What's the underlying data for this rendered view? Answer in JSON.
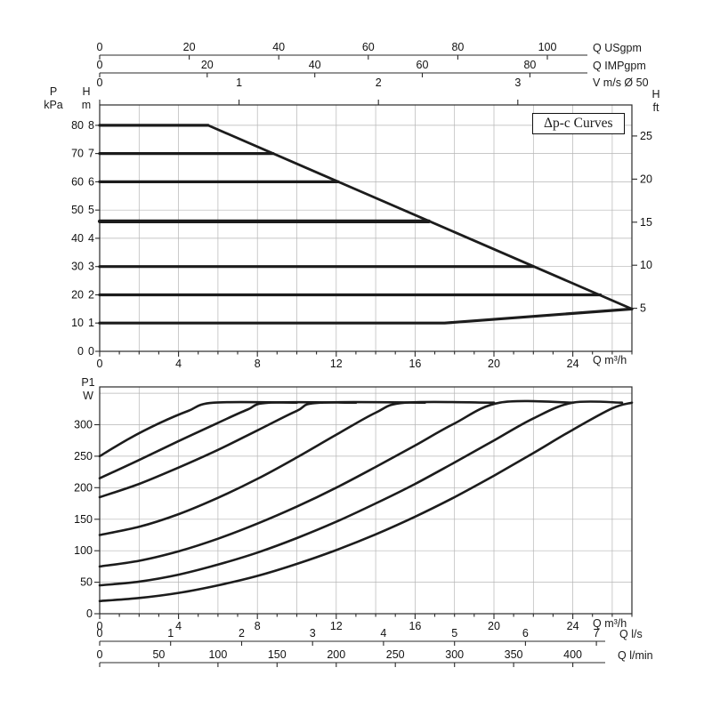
{
  "figure": {
    "bg": "#ffffff",
    "curve_color": "#1c1c1c",
    "grid_color": "#b5b5b5",
    "axis_color": "#2a2a2a"
  },
  "labels": {
    "box": "Δp-c Curves",
    "p": "P",
    "kpa": "kPa",
    "h": "H",
    "m": "m",
    "ft": "ft",
    "p1": "P1",
    "w": "W",
    "q_usgpm": "Q USgpm",
    "q_impgpm": "Q IMPgpm",
    "v_ms": "V m/s Ø 50",
    "q_m3h": "Q m³/h",
    "q_ls": "Q l/s",
    "q_lmin": "Q l/min"
  },
  "chart_data": [
    {
      "id": "head-capacity",
      "type": "line",
      "title": "Δp-c Curves — Head vs Flow",
      "x_axis": {
        "label": "Q m³/h",
        "min": 0,
        "max": 27,
        "major_ticks": [
          0,
          4,
          8,
          12,
          16,
          20,
          24
        ],
        "minor_step": 1
      },
      "y_axis_m": {
        "label": "H m",
        "min": 0,
        "max": 8.72,
        "ticks": [
          0,
          1,
          2,
          3,
          4,
          5,
          6,
          7,
          8
        ]
      },
      "y_axis_kpa": {
        "label": "P kPa",
        "ticks": [
          0,
          10,
          20,
          30,
          40,
          50,
          60,
          70,
          80
        ]
      },
      "y_axis_ft": {
        "label": "H ft",
        "ticks": [
          5,
          10,
          15,
          20,
          25
        ],
        "m_per_ft": 0.3048
      },
      "secondary_x_axes": [
        {
          "label": "Q USgpm",
          "ticks": [
            0,
            20,
            40,
            60,
            80,
            100
          ],
          "m3h_per_unit": 0.2271
        },
        {
          "label": "Q IMPgpm",
          "ticks": [
            0,
            20,
            40,
            60,
            80
          ],
          "m3h_per_unit": 0.2728
        },
        {
          "label": "V m/s Ø 50",
          "ticks": [
            0,
            1,
            2,
            3
          ],
          "m3h_per_unit": 7.07
        }
      ],
      "grid": {
        "x_step": 2,
        "y_lines": [
          1,
          2,
          3,
          4,
          5,
          6,
          7,
          8
        ]
      },
      "series": [
        {
          "name": "max-curve",
          "width": 2.8,
          "points": [
            [
              5.5,
              8
            ],
            [
              27,
              1.5
            ]
          ]
        },
        {
          "name": "dp-c-8m",
          "width": 3.2,
          "points": [
            [
              0,
              8
            ],
            [
              5.5,
              8
            ]
          ]
        },
        {
          "name": "dp-c-7m",
          "width": 3.2,
          "points": [
            [
              0,
              7
            ],
            [
              8.8,
              7
            ]
          ]
        },
        {
          "name": "dp-c-6m",
          "width": 3.2,
          "points": [
            [
              0,
              6
            ],
            [
              12.1,
              6
            ]
          ]
        },
        {
          "name": "dp-c-4.6m",
          "width": 4.2,
          "points": [
            [
              0,
              4.6
            ],
            [
              16.7,
              4.6
            ]
          ]
        },
        {
          "name": "dp-c-3m",
          "width": 3.2,
          "points": [
            [
              0,
              3
            ],
            [
              22.0,
              3
            ]
          ]
        },
        {
          "name": "dp-c-2m",
          "width": 3.2,
          "points": [
            [
              0,
              2
            ],
            [
              25.4,
              2
            ]
          ]
        },
        {
          "name": "min-curve-1m",
          "width": 3.2,
          "points": [
            [
              0,
              1
            ],
            [
              17.5,
              1
            ],
            [
              27,
              1.5
            ]
          ]
        }
      ]
    },
    {
      "id": "power-input",
      "type": "line",
      "title": "Power input P1 vs Flow",
      "smooth": true,
      "x_axis": {
        "label": "Q m³/h",
        "min": 0,
        "max": 27,
        "major_ticks": [
          0,
          4,
          8,
          12,
          16,
          20,
          24
        ],
        "minor_step": 1
      },
      "y_axis": {
        "label": "P1 W",
        "min": 0,
        "max": 360,
        "ticks": [
          0,
          50,
          100,
          150,
          200,
          250,
          300
        ]
      },
      "secondary_x_axes": [
        {
          "label": "Q l/s",
          "ticks": [
            0,
            1,
            2,
            3,
            4,
            5,
            6,
            7
          ],
          "m3h_per_unit": 3.6
        },
        {
          "label": "Q l/min",
          "ticks": [
            0,
            50,
            100,
            150,
            200,
            250,
            300,
            350,
            400
          ],
          "m3h_per_unit": 0.06
        }
      ],
      "grid": {
        "x_step": 2,
        "y_lines": [
          50,
          100,
          150,
          200,
          250,
          300,
          350
        ]
      },
      "series": [
        {
          "name": "p1-max",
          "width": 2.6,
          "points": [
            [
              0,
              250
            ],
            [
              1.5,
              278
            ],
            [
              3,
              302
            ],
            [
              4.5,
              322
            ],
            [
              5.8,
              335
            ],
            [
              10,
              335
            ]
          ]
        },
        {
          "name": "p1-7m",
          "width": 2.6,
          "points": [
            [
              0,
              215
            ],
            [
              2,
              244
            ],
            [
              4,
              274
            ],
            [
              6,
              303
            ],
            [
              7.5,
              324
            ],
            [
              8.6,
              335
            ],
            [
              13,
              335
            ]
          ]
        },
        {
          "name": "p1-6m",
          "width": 2.6,
          "points": [
            [
              0,
              185
            ],
            [
              2,
              206
            ],
            [
              4,
              232
            ],
            [
              6,
              260
            ],
            [
              8,
              291
            ],
            [
              10,
              322
            ],
            [
              11.2,
              335
            ],
            [
              16.5,
              335
            ]
          ]
        },
        {
          "name": "p1-4.6m",
          "width": 2.6,
          "points": [
            [
              0,
              125
            ],
            [
              2,
              138
            ],
            [
              4,
              158
            ],
            [
              6,
              184
            ],
            [
              8,
              214
            ],
            [
              10,
              248
            ],
            [
              12,
              284
            ],
            [
              14,
              319
            ],
            [
              15.5,
              335
            ],
            [
              20,
              335
            ]
          ]
        },
        {
          "name": "p1-3m",
          "width": 2.6,
          "points": [
            [
              0,
              75
            ],
            [
              2,
              84
            ],
            [
              4,
              99
            ],
            [
              6,
              119
            ],
            [
              8,
              143
            ],
            [
              10,
              170
            ],
            [
              12,
              200
            ],
            [
              14,
              233
            ],
            [
              16,
              267
            ],
            [
              18,
              302
            ],
            [
              20.3,
              335
            ],
            [
              24,
              335
            ]
          ]
        },
        {
          "name": "p1-2m",
          "width": 2.6,
          "points": [
            [
              0,
              45
            ],
            [
              2,
              51
            ],
            [
              4,
              62
            ],
            [
              6,
              78
            ],
            [
              8,
              97
            ],
            [
              10,
              120
            ],
            [
              12,
              146
            ],
            [
              14,
              175
            ],
            [
              16,
              206
            ],
            [
              18,
              240
            ],
            [
              20,
              275
            ],
            [
              22,
              310
            ],
            [
              24,
              335
            ],
            [
              26.5,
              335
            ]
          ]
        },
        {
          "name": "p1-min",
          "width": 2.6,
          "points": [
            [
              0,
              20
            ],
            [
              2,
              25
            ],
            [
              4,
              33
            ],
            [
              6,
              45
            ],
            [
              8,
              60
            ],
            [
              10,
              79
            ],
            [
              12,
              101
            ],
            [
              14,
              126
            ],
            [
              16,
              154
            ],
            [
              18,
              185
            ],
            [
              20,
              219
            ],
            [
              22,
              255
            ],
            [
              24,
              292
            ],
            [
              26,
              326
            ],
            [
              27,
              335
            ]
          ]
        }
      ]
    }
  ]
}
